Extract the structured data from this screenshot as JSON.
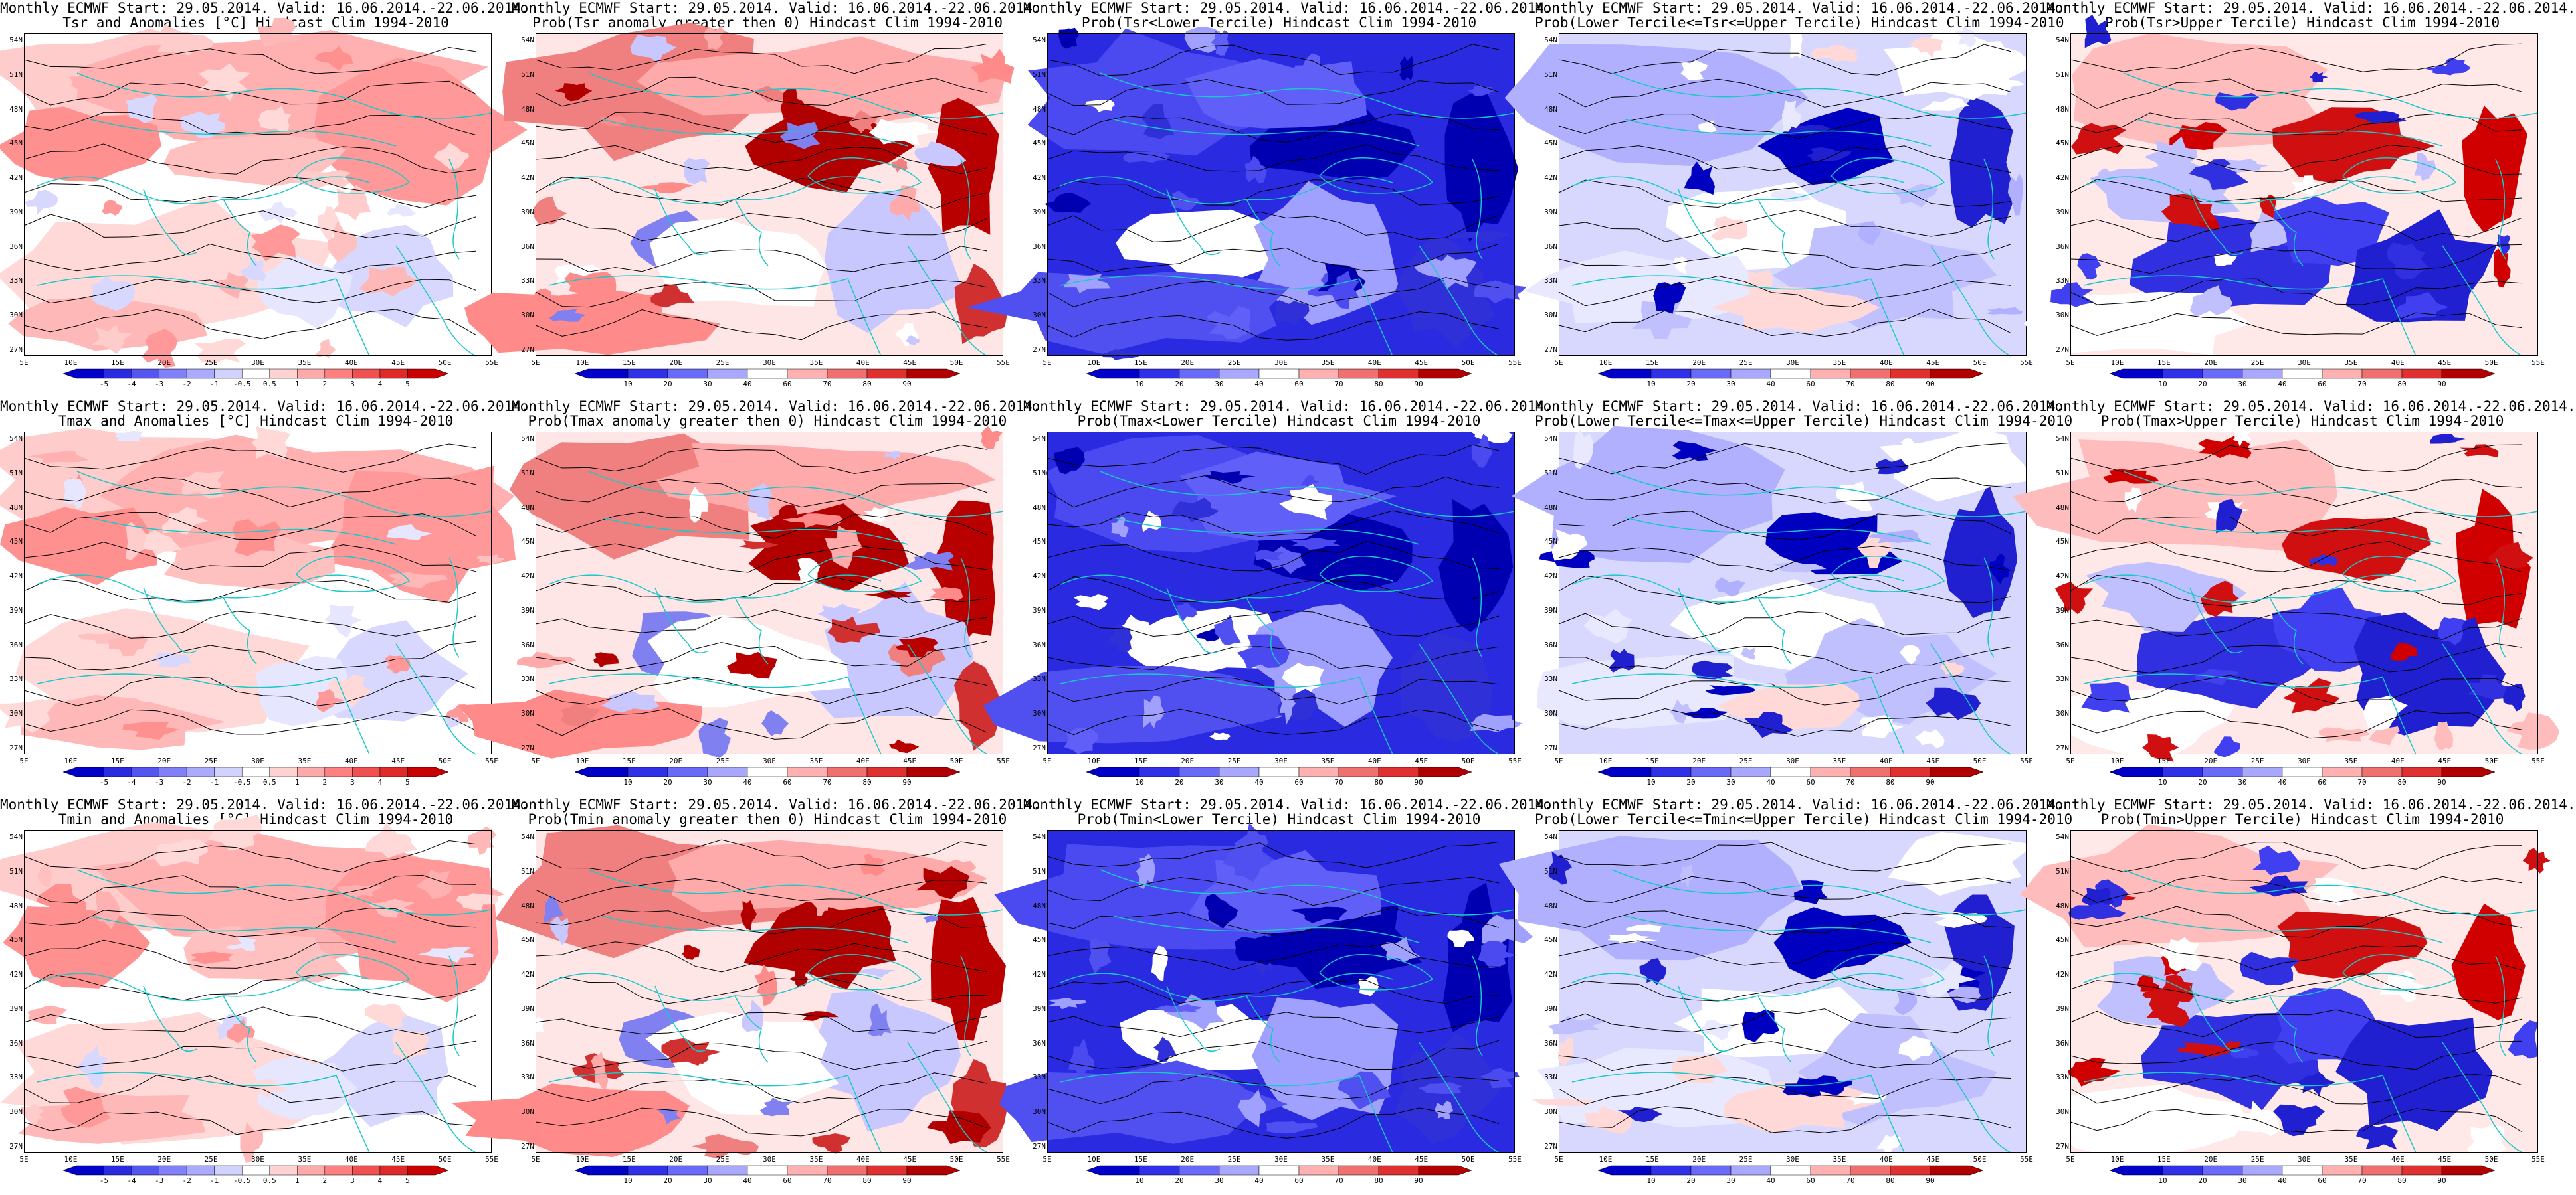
{
  "rows": [
    {
      "panels": [
        {
          "title1": "Monthly ECMWF Start: 29.05.2014. Valid: 16.06.2014.-22.06.2014.",
          "title2": "Tsr and Anomalies [°C] Hindcast Clim 1994-2010",
          "scale": "anom",
          "pattern": "warm-weak"
        },
        {
          "title1": "Monthly ECMWF Start: 29.05.2014. Valid: 16.06.2014.-22.06.2014.",
          "title2": "Prob(Tsr anomaly greater then 0) Hindcast Clim 1994-2010",
          "scale": "prob",
          "pattern": "warm-strong"
        },
        {
          "title1": "Monthly ECMWF Start: 29.05.2014. Valid: 16.06.2014.-22.06.2014.",
          "title2": "Prob(Tsr<Lower Tercile) Hindcast Clim 1994-2010",
          "scale": "prob",
          "pattern": "cold-strong"
        },
        {
          "title1": "Monthly ECMWF Start: 29.05.2014. Valid: 16.06.2014.-22.06.2014.",
          "title2": "Prob(Lower Tercile<=Tsr<=Upper Tercile) Hindcast Clim 1994-2010",
          "scale": "prob",
          "pattern": "mixed"
        },
        {
          "title1": "Monthly ECMWF Start: 29.05.2014. Valid: 16.06.2014.-22.06.2014.",
          "title2": "Prob(Tsr>Upper Tercile) Hindcast Clim 1994-2010",
          "scale": "prob",
          "pattern": "upper"
        }
      ]
    },
    {
      "panels": [
        {
          "title1": "Monthly ECMWF Start: 29.05.2014. Valid: 16.06.2014.-22.06.2014.",
          "title2": "Tmax and Anomalies [°C] Hindcast Clim 1994-2010",
          "scale": "anom",
          "pattern": "warm-weak"
        },
        {
          "title1": "Monthly ECMWF Start: 29.05.2014. Valid: 16.06.2014.-22.06.2014.",
          "title2": "Prob(Tmax anomaly greater then 0) Hindcast Clim 1994-2010",
          "scale": "prob",
          "pattern": "warm-strong"
        },
        {
          "title1": "Monthly ECMWF Start: 29.05.2014. Valid: 16.06.2014.-22.06.2014.",
          "title2": "Prob(Tmax<Lower Tercile) Hindcast Clim 1994-2010",
          "scale": "prob",
          "pattern": "cold-strong"
        },
        {
          "title1": "Monthly ECMWF Start: 29.05.2014. Valid: 16.06.2014.-22.06.2014.",
          "title2": "Prob(Lower Tercile<=Tmax<=Upper Tercile) Hindcast Clim 1994-2010",
          "scale": "prob",
          "pattern": "mixed"
        },
        {
          "title1": "Monthly ECMWF Start: 29.05.2014. Valid: 16.06.2014.-22.06.2014.",
          "title2": "Prob(Tmax>Upper Tercile) Hindcast Clim 1994-2010",
          "scale": "prob",
          "pattern": "upper"
        }
      ]
    },
    {
      "panels": [
        {
          "title1": "Monthly ECMWF Start: 29.05.2014. Valid: 16.06.2014.-22.06.2014.",
          "title2": "Tmin and Anomalies [°C] Hindcast Clim 1994-2010",
          "scale": "anom",
          "pattern": "warm-weak"
        },
        {
          "title1": "Monthly ECMWF Start: 29.05.2014. Valid: 16.06.2014.-22.06.2014.",
          "title2": "Prob(Tmin anomaly greater then 0) Hindcast Clim 1994-2010",
          "scale": "prob",
          "pattern": "warm-strong"
        },
        {
          "title1": "Monthly ECMWF Start: 29.05.2014. Valid: 16.06.2014.-22.06.2014.",
          "title2": "Prob(Tmin<Lower Tercile) Hindcast Clim 1994-2010",
          "scale": "prob",
          "pattern": "cold-strong"
        },
        {
          "title1": "Monthly ECMWF Start: 29.05.2014. Valid: 16.06.2014.-22.06.2014.",
          "title2": "Prob(Lower Tercile<=Tmin<=Upper Tercile) Hindcast Clim 1994-2010",
          "scale": "prob",
          "pattern": "mixed"
        },
        {
          "title1": "Monthly ECMWF Start: 29.05.2014. Valid: 16.06.2014.-22.06.2014.",
          "title2": "Prob(Tmin>Upper Tercile) Hindcast Clim 1994-2010",
          "scale": "prob",
          "pattern": "upper"
        }
      ]
    }
  ],
  "lat_labels": [
    "54N",
    "51N",
    "48N",
    "45N",
    "42N",
    "39N",
    "36N",
    "33N",
    "30N",
    "27N"
  ],
  "lon_labels": [
    "5E",
    "10E",
    "15E",
    "20E",
    "25E",
    "30E",
    "35E",
    "40E",
    "45E",
    "50E",
    "55E"
  ],
  "colorbars": {
    "anom": {
      "labels": [
        "-5",
        "-4",
        "-3",
        "-2",
        "-1",
        "-0.5",
        "0.5",
        "1",
        "2",
        "3",
        "4",
        "5"
      ],
      "colors": [
        "#0000c8",
        "#2a2ae0",
        "#5555f0",
        "#8080f8",
        "#aaaaff",
        "#d2d2ff",
        "#ffffff",
        "#ffd2d2",
        "#ffaaaa",
        "#ff8080",
        "#f05050",
        "#e02a2a",
        "#c80000"
      ]
    },
    "prob": {
      "labels": [
        "10",
        "20",
        "30",
        "40",
        "60",
        "70",
        "80",
        "90"
      ],
      "colors": [
        "#0000c8",
        "#3030e8",
        "#6a6af8",
        "#a8a8ff",
        "#ffffff",
        "#ffb0b0",
        "#f07070",
        "#e03030",
        "#b00000"
      ]
    }
  },
  "colors": {
    "coastline": "#19c8c8",
    "contour": "#000000",
    "deep_red": "#a00000",
    "deep_blue": "#0000b4"
  }
}
